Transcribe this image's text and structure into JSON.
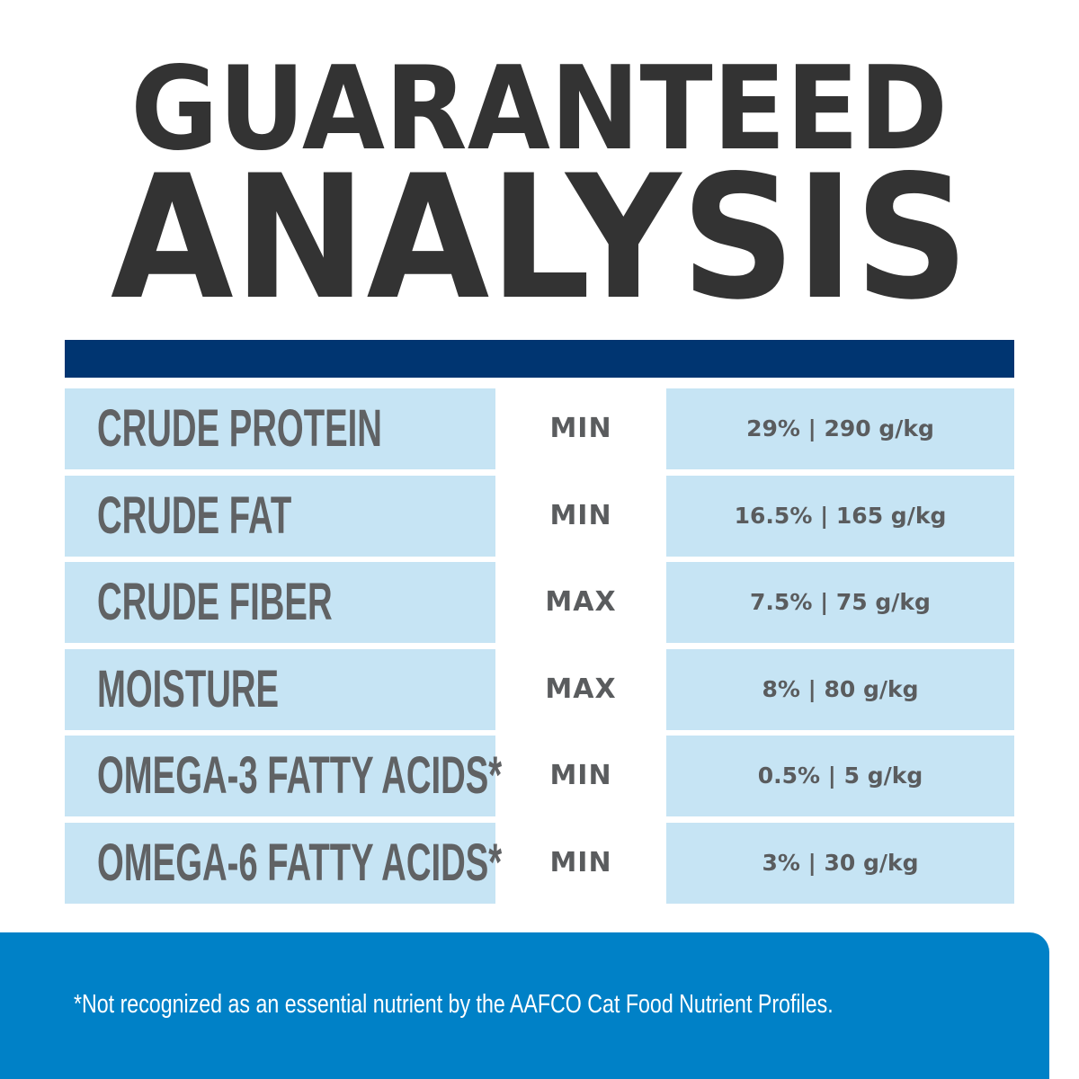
{
  "title": {
    "line1": "GUARANTEED",
    "line2": "ANALYSIS"
  },
  "colors": {
    "header_bar": "#003571",
    "cell_bg": "#c6e4f4",
    "footer_bg": "#0081c7",
    "text": "#606264",
    "title": "#333333"
  },
  "rows": [
    {
      "nutrient": "CRUDE PROTEIN",
      "qualifier": "MIN",
      "value": "29% | 290 g/kg"
    },
    {
      "nutrient": "CRUDE FAT",
      "qualifier": "MIN",
      "value": "16.5% | 165 g/kg"
    },
    {
      "nutrient": "CRUDE FIBER",
      "qualifier": "MAX",
      "value": "7.5% | 75 g/kg"
    },
    {
      "nutrient": "MOISTURE",
      "qualifier": "MAX",
      "value": "8% | 80 g/kg"
    },
    {
      "nutrient": "OMEGA-3 FATTY ACIDS*",
      "qualifier": "MIN",
      "value": "0.5% | 5 g/kg"
    },
    {
      "nutrient": "OMEGA-6 FATTY ACIDS*",
      "qualifier": "MIN",
      "value": "3% | 30 g/kg"
    }
  ],
  "footnote": "*Not recognized as an essential nutrient by the AAFCO Cat Food Nutrient Profiles."
}
